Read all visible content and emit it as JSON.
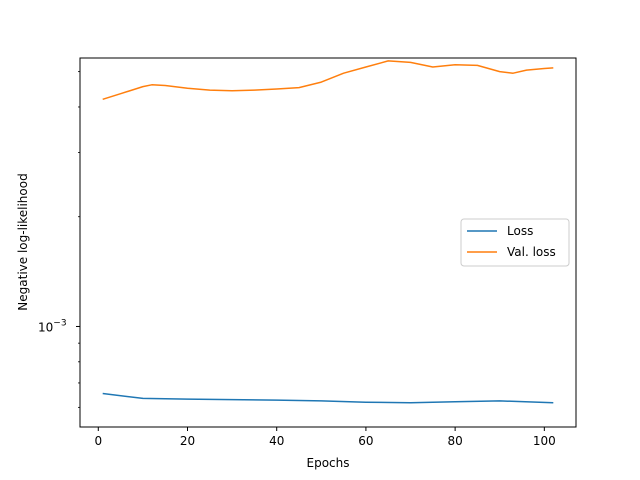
{
  "chart_data": {
    "type": "line",
    "xlabel": "Epochs",
    "ylabel": "Negative log-likelihood",
    "yscale": "log",
    "xlim": [
      -4.1,
      107.1
    ],
    "ylim": [
      0.00053,
      0.00545
    ],
    "x_ticks": [
      0,
      20,
      40,
      60,
      80,
      100
    ],
    "x_tick_labels": [
      "0",
      "20",
      "40",
      "60",
      "80",
      "100"
    ],
    "y_major_tick": 0.001,
    "y_minor_ticks": [
      0.0006,
      0.0007,
      0.0008,
      0.0009,
      0.002,
      0.003,
      0.004,
      0.005
    ],
    "y_tick_label": {
      "base": "10",
      "exponent": "−3"
    },
    "grid": false,
    "legend_position": "center-right",
    "series": [
      {
        "name": "Loss",
        "color": "#1f77b4",
        "x": [
          1,
          10,
          20,
          30,
          40,
          50,
          60,
          70,
          80,
          90,
          102
        ],
        "y": [
          0.000655,
          0.000635,
          0.000632,
          0.00063,
          0.000628,
          0.000625,
          0.00062,
          0.000618,
          0.000622,
          0.000625,
          0.000618
        ]
      },
      {
        "name": "Val. loss",
        "color": "#ff7f0e",
        "x": [
          1,
          5,
          10,
          12,
          15,
          20,
          25,
          30,
          35,
          40,
          45,
          50,
          55,
          60,
          65,
          70,
          75,
          80,
          85,
          90,
          93,
          96,
          100,
          102
        ],
        "y": [
          0.0042,
          0.00435,
          0.00455,
          0.0046,
          0.00458,
          0.0045,
          0.00445,
          0.00443,
          0.00445,
          0.00448,
          0.00452,
          0.00468,
          0.00495,
          0.00515,
          0.00535,
          0.0053,
          0.00515,
          0.00522,
          0.0052,
          0.005,
          0.00495,
          0.00505,
          0.0051,
          0.00512
        ]
      }
    ]
  }
}
